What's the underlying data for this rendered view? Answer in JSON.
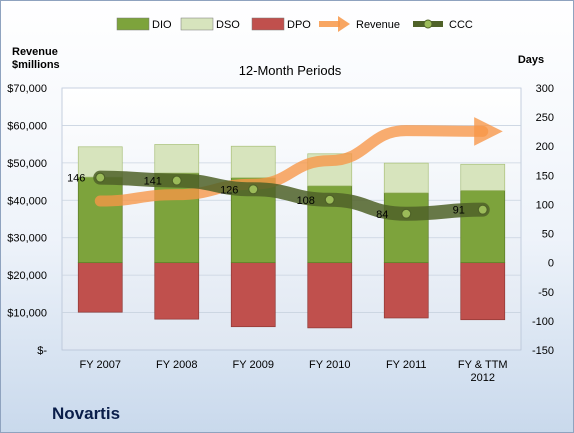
{
  "company": "Novartis",
  "chart_data": {
    "type": "bar",
    "title": "12-Month Periods",
    "left_axis_title": [
      "Revenue",
      "$millions"
    ],
    "right_axis_title": "Days",
    "categories": [
      [
        "FY 2007"
      ],
      [
        "FY 2008"
      ],
      [
        "FY 2009"
      ],
      [
        "FY 2010"
      ],
      [
        "FY 2011"
      ],
      [
        "FY & TTM",
        "2012"
      ]
    ],
    "left_axis": {
      "ylim": [
        0,
        70000
      ],
      "ticks": [
        "$-",
        "$10,000",
        "$20,000",
        "$30,000",
        "$40,000",
        "$50,000",
        "$60,000",
        "$70,000"
      ]
    },
    "right_axis": {
      "ylim": [
        -150,
        300
      ],
      "ticks": [
        "-150",
        "-100",
        "-50",
        "0",
        "50",
        "100",
        "150",
        "200",
        "250",
        "300"
      ]
    },
    "legend": [
      "DIO",
      "DSO",
      "DPO",
      "Revenue",
      "CCC"
    ],
    "legend_position": "top",
    "series": [
      {
        "name": "DIO",
        "axis": "days",
        "kind": "stacked-bar",
        "color": "#7da33c",
        "values": [
          147,
          154,
          146,
          132,
          120,
          124
        ]
      },
      {
        "name": "DSO",
        "axis": "days",
        "kind": "stacked-bar",
        "color": "#d7e4bd",
        "values": [
          52,
          49,
          54,
          55,
          51,
          45
        ]
      },
      {
        "name": "DPO",
        "axis": "days",
        "kind": "negative-bar",
        "color": "#c0504d",
        "values": [
          -85,
          -97,
          -110,
          -112,
          -95,
          -98
        ]
      },
      {
        "name": "Revenue",
        "axis": "revenue",
        "kind": "trend-arrow",
        "color": "#f79646",
        "values": [
          39800,
          41500,
          44300,
          50600,
          58600,
          58400
        ]
      },
      {
        "name": "CCC",
        "axis": "days",
        "kind": "line",
        "color": "#4f6228",
        "values": [
          146,
          141,
          126,
          108,
          84,
          91
        ]
      }
    ],
    "ccc_labels": [
      "146",
      "141",
      "126",
      "108",
      "84",
      "91"
    ]
  }
}
